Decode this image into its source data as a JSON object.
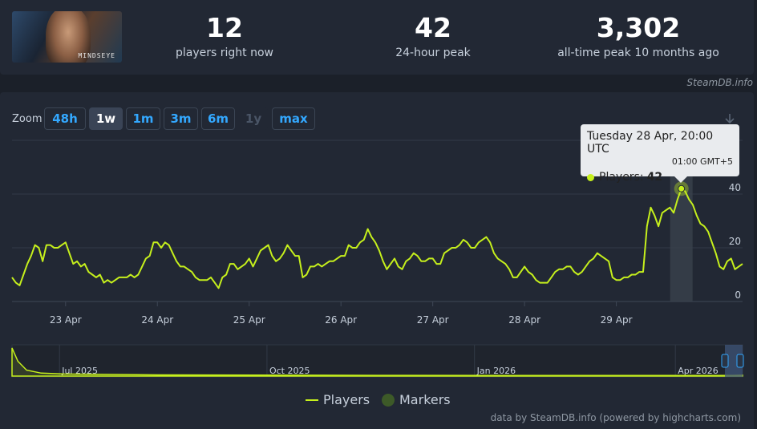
{
  "header": {
    "game_logo_text": "MINDSEYE",
    "stats": [
      {
        "value": "12",
        "label": "players right now"
      },
      {
        "value": "42",
        "label": "24-hour peak"
      },
      {
        "value": "3,302",
        "label": "all-time peak 10 months ago"
      }
    ]
  },
  "credit_top": "SteamDB.info",
  "zoom": {
    "label": "Zoom",
    "buttons": [
      "48h",
      "1w",
      "1m",
      "3m",
      "6m",
      "1y",
      "max"
    ],
    "active": "1w",
    "disabled": "1y"
  },
  "tooltip": {
    "title": "Tuesday 28 Apr, 20:00 UTC",
    "subtitle": "01:00 GMT+5",
    "series_label": "Players:",
    "value": "42"
  },
  "legend": {
    "players": "Players",
    "markers": "Markers"
  },
  "credit_bottom": "data by SteamDB.info (powered by highcharts.com)",
  "colors": {
    "series": "#c6f01c",
    "background": "#1b2029",
    "panel": "#222834",
    "accent": "#33a8ff"
  },
  "chart_data": {
    "type": "line",
    "title": "",
    "series": [
      {
        "name": "Players",
        "x_start_label": "22 Apr",
        "x_step_hours": 1,
        "values": [
          9,
          7,
          6,
          10,
          14,
          17,
          21,
          20,
          15,
          21,
          21,
          20,
          20,
          21,
          22,
          18,
          14,
          15,
          13,
          14,
          11,
          10,
          9,
          10,
          7,
          8,
          7,
          8,
          9,
          9,
          9,
          10,
          9,
          10,
          13,
          16,
          17,
          22,
          22,
          20,
          22,
          21,
          18,
          15,
          13,
          13,
          12,
          11,
          9,
          8,
          8,
          8,
          9,
          7,
          5,
          9,
          10,
          14,
          14,
          12,
          13,
          14,
          16,
          13,
          16,
          19,
          20,
          21,
          17,
          15,
          16,
          18,
          21,
          19,
          17,
          17,
          9,
          10,
          13,
          13,
          14,
          13,
          14,
          15,
          15,
          16,
          17,
          17,
          21,
          20,
          20,
          22,
          23,
          27,
          24,
          22,
          19,
          15,
          12,
          14,
          16,
          13,
          12,
          15,
          16,
          18,
          17,
          15,
          15,
          16,
          16,
          14,
          14,
          18,
          19,
          20,
          20,
          21,
          23,
          22,
          20,
          20,
          22,
          23,
          24,
          22,
          18,
          16,
          15,
          14,
          12,
          9,
          9,
          11,
          13,
          11,
          10,
          8,
          7,
          7,
          7,
          9,
          11,
          12,
          12,
          13,
          13,
          11,
          10,
          11,
          13,
          15,
          16,
          18,
          17,
          16,
          15,
          9,
          8,
          8,
          9,
          9,
          10,
          10,
          11,
          11,
          28,
          35,
          32,
          28,
          33,
          34,
          35,
          33,
          38,
          42,
          41,
          38,
          36,
          32,
          29,
          28,
          26,
          22,
          18,
          13,
          12,
          15,
          16,
          12,
          13,
          14
        ]
      }
    ],
    "x_tick_labels": [
      "23 Apr",
      "24 Apr",
      "25 Apr",
      "26 Apr",
      "27 Apr",
      "28 Apr",
      "29 Apr"
    ],
    "y_tick_labels": [
      "0",
      "20",
      "40"
    ],
    "ylim": [
      0,
      60
    ],
    "highlighted_point": {
      "label": "28 Apr, 20:00",
      "value": 42
    },
    "navigator": {
      "x_tick_labels": [
        "Jul 2025",
        "Oct 2025",
        "Jan 2026",
        "Apr 2026"
      ]
    },
    "grid": true,
    "legend_placement": "bottom-center"
  }
}
